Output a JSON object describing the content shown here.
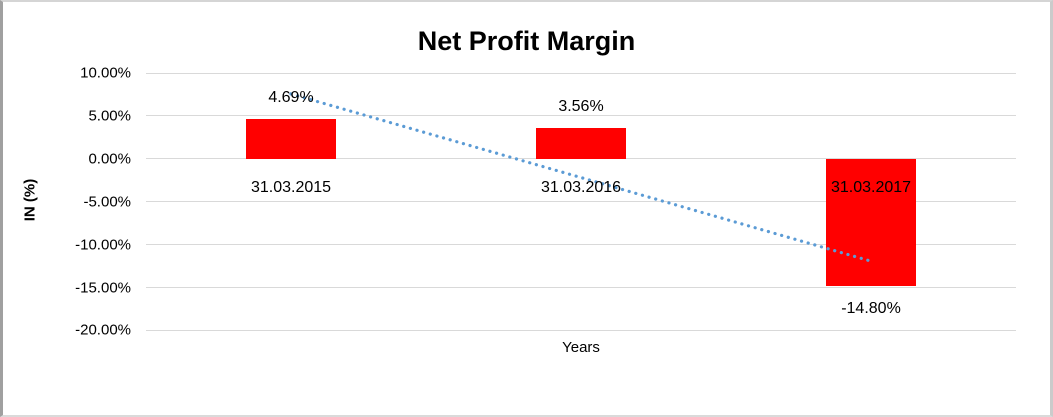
{
  "chart_data": {
    "type": "bar",
    "title": "Net Profit Margin",
    "xlabel": "Years",
    "ylabel": "IN (%)",
    "categories": [
      "31.03.2015",
      "31.03.2016",
      "31.03.2017"
    ],
    "values": [
      4.69,
      3.56,
      -14.8
    ],
    "data_labels": [
      "4.69%",
      "3.56%",
      "-14.80%"
    ],
    "ylim": [
      -20,
      10
    ],
    "grid": "horizontal",
    "legend": "none",
    "y_ticks": [
      {
        "value": 10,
        "label": "10.00%"
      },
      {
        "value": 5,
        "label": "5.00%"
      },
      {
        "value": 0,
        "label": "0.00%"
      },
      {
        "value": -5,
        "label": "-5.00%"
      },
      {
        "value": -10,
        "label": "-10.00%"
      },
      {
        "value": -15,
        "label": "-15.00%"
      },
      {
        "value": -20,
        "label": "-20.00%"
      }
    ],
    "bar_color": "#FF0000",
    "gridline_color": "#D9D9D9",
    "text_color": "#000000",
    "trendline": {
      "type": "linear",
      "style": "dotted",
      "color": "#5B9BD5",
      "start_value": 7.56,
      "end_value": -11.93
    }
  }
}
